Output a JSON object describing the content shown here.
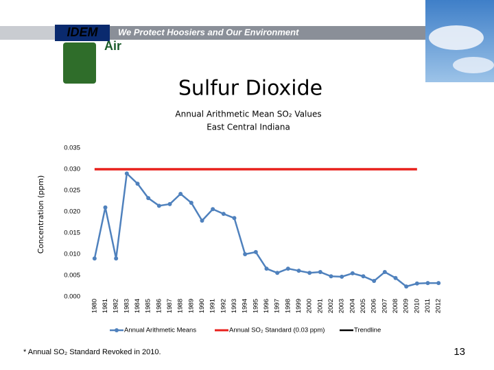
{
  "header": {
    "slogan": "We Protect Hoosiers and Our Environment",
    "logo": "IDEM",
    "section": "Air"
  },
  "slide_title": "Sulfur Dioxide",
  "chart_data": {
    "type": "line",
    "title": "Annual  Arithmetic Mean SO₂ Values",
    "subtitle": "East Central Indiana",
    "y_label": "Concentration (ppm)",
    "categories": [
      "1980",
      "1981",
      "1982",
      "1983",
      "1984",
      "1985",
      "1986",
      "1987",
      "1988",
      "1989",
      "1990",
      "1991",
      "1992",
      "1993",
      "1994",
      "1995",
      "1996",
      "1997",
      "1998",
      "1999",
      "2000",
      "2001",
      "2002",
      "2003",
      "2004",
      "2005",
      "2006",
      "2007",
      "2008",
      "2009",
      "2010",
      "2011",
      "2012"
    ],
    "series": [
      {
        "name": "Annual Arithmetic Means",
        "color": "#4f81bd",
        "values": [
          0.009,
          0.021,
          0.009,
          0.029,
          0.0266,
          0.0232,
          0.0214,
          0.0218,
          0.0242,
          0.0221,
          0.0179,
          0.0206,
          0.0195,
          0.0185,
          0.01,
          0.0105,
          0.0066,
          0.0056,
          0.0066,
          0.0061,
          0.0056,
          0.0058,
          0.0048,
          0.0047,
          0.0055,
          0.0048,
          0.0037,
          0.0058,
          0.0044,
          0.0024,
          0.0031,
          0.0032,
          0.0032
        ]
      },
      {
        "name": "Annual SO₂ Standard (0.03 ppm)",
        "color": "#e8201c",
        "values": [
          0.03,
          0.03,
          0.03,
          0.03,
          0.03,
          0.03,
          0.03,
          0.03,
          0.03,
          0.03,
          0.03,
          0.03,
          0.03,
          0.03,
          0.03,
          0.03,
          0.03,
          0.03,
          0.03,
          0.03,
          0.03,
          0.03,
          0.03,
          0.03,
          0.03,
          0.03,
          0.03,
          0.03,
          0.03,
          0.03,
          0.03,
          null,
          null
        ]
      },
      {
        "name": "Trendline",
        "color": "#000000",
        "values": [
          null,
          null,
          null,
          null,
          null,
          null,
          null,
          null,
          null,
          null,
          null,
          null,
          null,
          null,
          null,
          null,
          null,
          null,
          null,
          null,
          null,
          null,
          null,
          null,
          null,
          null,
          null,
          null,
          null,
          null,
          null,
          null,
          null
        ]
      }
    ],
    "ylim": [
      0,
      0.035
    ],
    "yticks": [
      {
        "value": 0,
        "label": "0.000"
      },
      0.005,
      {
        "value": 0.01,
        "label": "0.010"
      },
      0.015,
      {
        "value": 0.02,
        "label": "0.020"
      },
      0.025,
      {
        "value": 0.03,
        "label": "0.030"
      },
      0.035
    ],
    "legend": "bottom"
  },
  "footnote": "* Annual SO₂ Standard Revoked in 2010.",
  "page_number": "13"
}
